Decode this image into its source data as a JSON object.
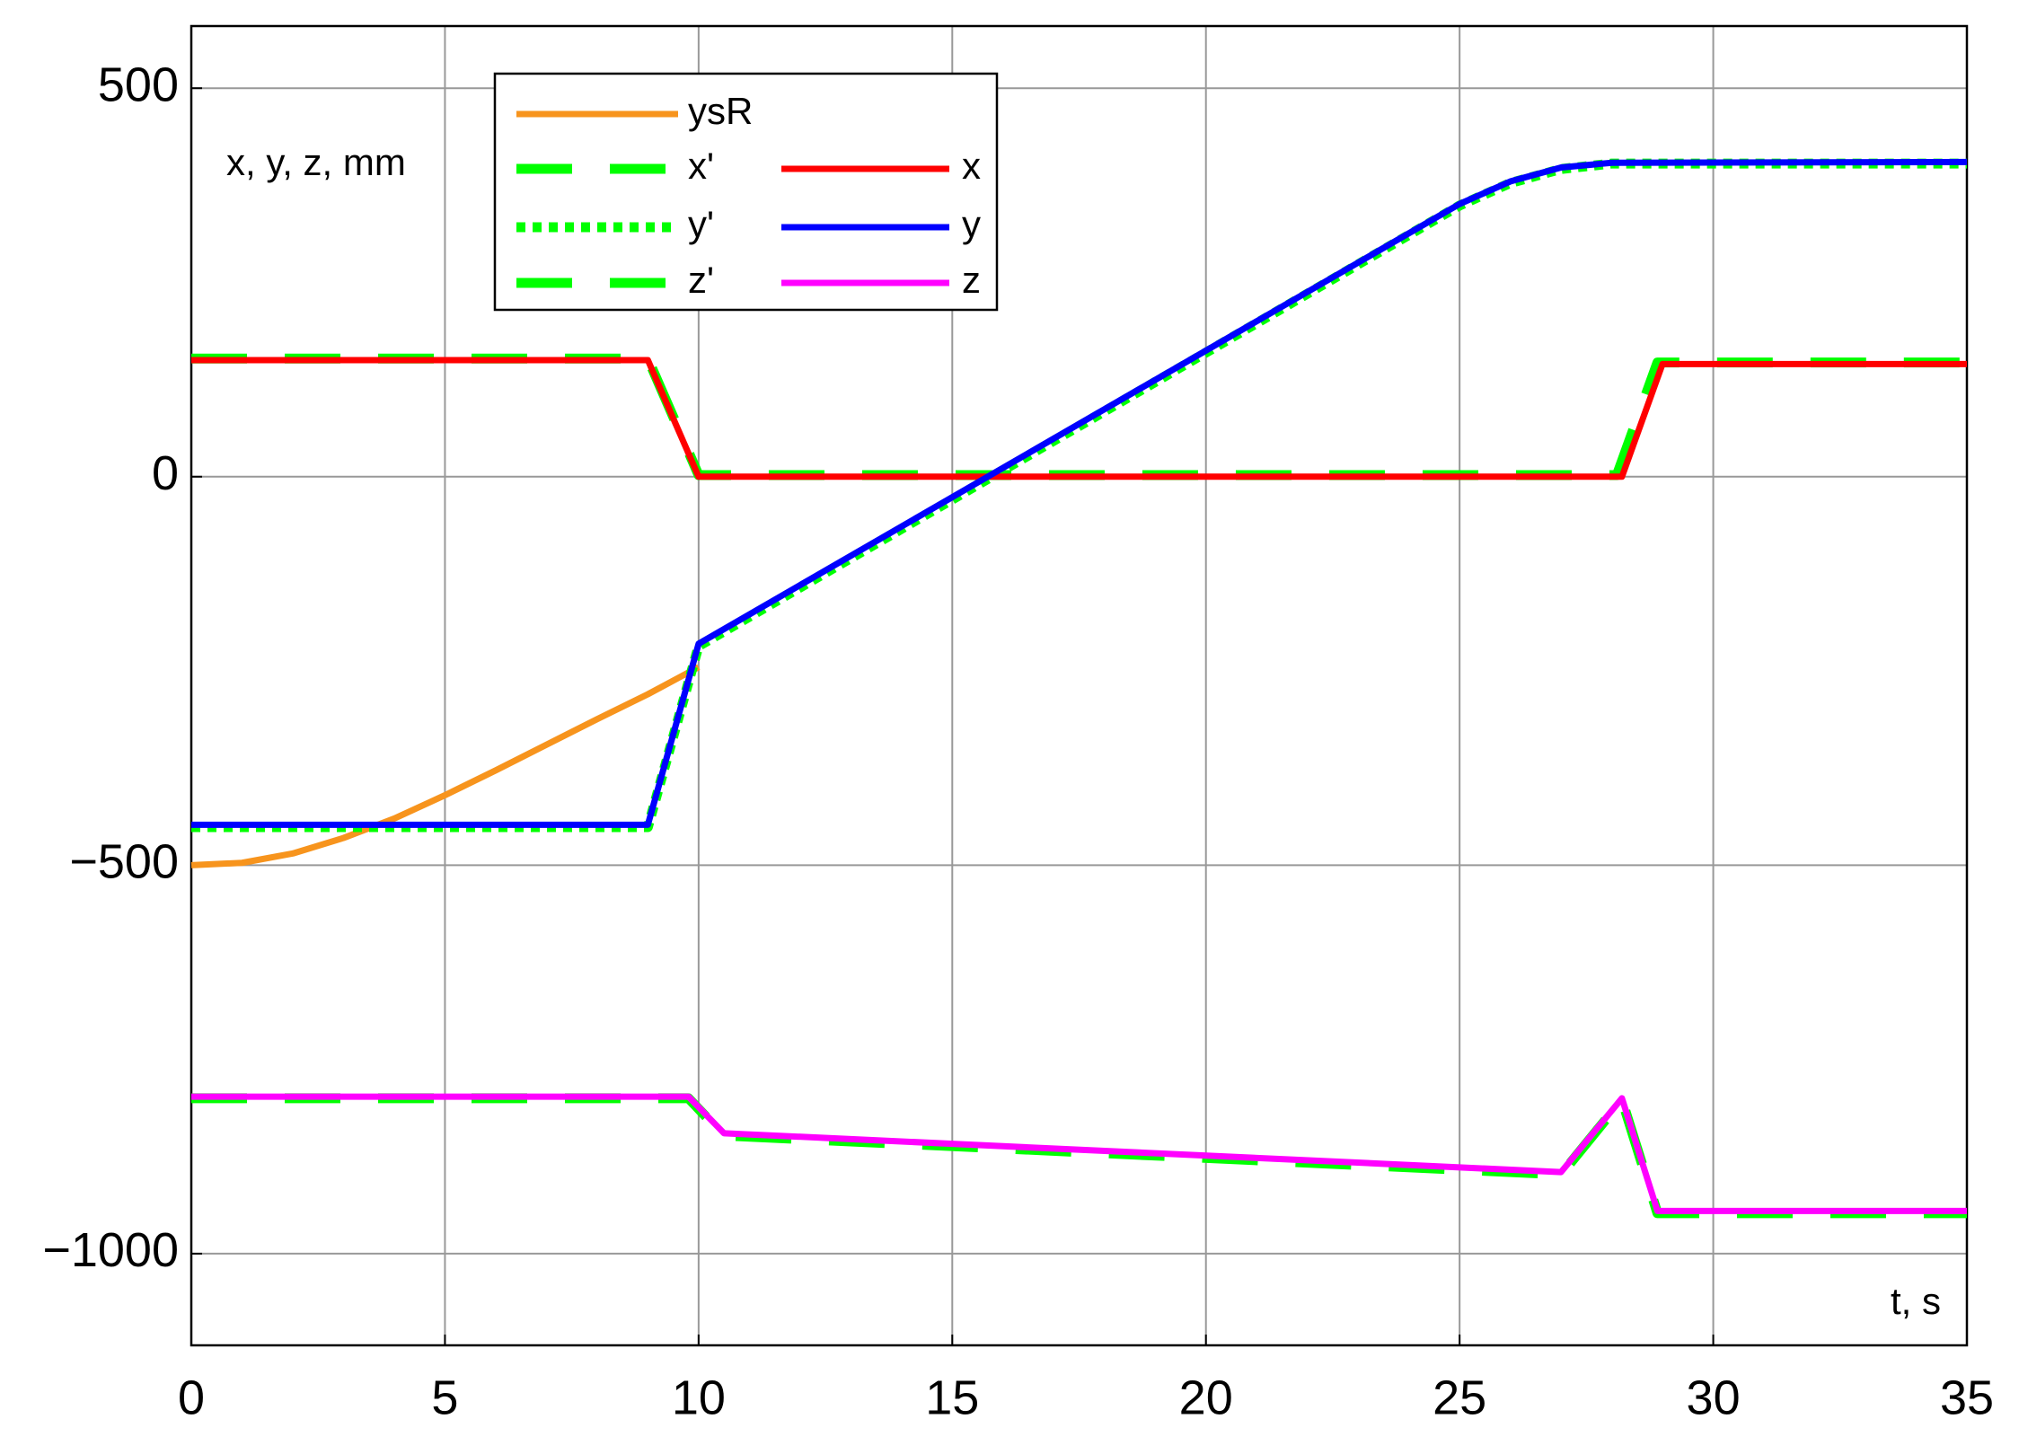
{
  "chart_data": {
    "type": "line",
    "ylabel": "x, y, z, mm",
    "xlabel": "t, s",
    "xlim": [
      0,
      35
    ],
    "xticks": [
      0,
      5,
      10,
      15,
      20,
      25,
      30,
      35
    ],
    "ylim": [
      -1118,
      580
    ],
    "yticks": [
      {
        "value": -1000,
        "label": "−1000"
      },
      {
        "value": -500,
        "label": "−500"
      },
      0,
      500
    ],
    "grid": true,
    "legend": "upper left",
    "series": [
      {
        "name": "ysR",
        "color": "#f7941d",
        "style": "solid",
        "x": [
          0,
          1,
          2,
          3,
          4,
          5,
          6,
          7,
          8,
          9,
          10
        ],
        "values": [
          -500,
          -497,
          -485,
          -465,
          -440,
          -410,
          -378,
          -345,
          -312,
          -280,
          -245
        ]
      },
      {
        "name": "x'",
        "color": "#00ff00",
        "style": "dashed",
        "x": [
          0,
          9,
          10,
          28.1,
          28.9,
          35
        ],
        "values": [
          152,
          152,
          2,
          2,
          147,
          147
        ]
      },
      {
        "name": "y'",
        "color": "#00ff00",
        "style": "dotted",
        "x": [
          0,
          9,
          10,
          15.7,
          25,
          26,
          27,
          28,
          35
        ],
        "values": [
          -451,
          -451,
          -218,
          -3,
          349,
          378,
          396,
          403,
          403
        ]
      },
      {
        "name": "z'",
        "color": "#00ff00",
        "style": "dashed",
        "x": [
          0,
          9.8,
          10.5,
          27,
          28.2,
          28.9,
          35
        ],
        "values": [
          -800,
          -800,
          -848,
          -898,
          -802,
          -948,
          -948
        ]
      },
      {
        "name": "x",
        "color": "#ff0000",
        "style": "solid",
        "x": [
          0,
          9,
          10,
          28.2,
          29,
          35
        ],
        "values": [
          150,
          150,
          0,
          0,
          145,
          145
        ]
      },
      {
        "name": "y",
        "color": "#0000ff",
        "style": "solid",
        "x": [
          0,
          9,
          10,
          15.7,
          25,
          26,
          27,
          28,
          35
        ],
        "values": [
          -448,
          -448,
          -215,
          0,
          351,
          380,
          398,
          404,
          405
        ]
      },
      {
        "name": "z",
        "color": "#ff00ff",
        "style": "solid",
        "x": [
          0,
          9.8,
          10.5,
          27,
          28.2,
          28.9,
          35
        ],
        "values": [
          -798,
          -798,
          -845,
          -895,
          -800,
          -945,
          -945
        ]
      }
    ]
  }
}
